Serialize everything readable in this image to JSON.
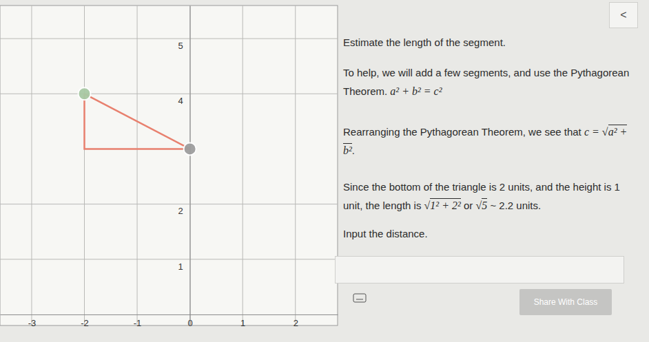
{
  "chart_data": {
    "type": "line",
    "xlim": [
      -3.6,
      2.8
    ],
    "ylim": [
      -0.2,
      5.6
    ],
    "xticks": [
      -3,
      -2,
      -1,
      0,
      1,
      2
    ],
    "yticks": [
      1,
      2,
      4,
      5
    ],
    "grid": true,
    "series": [
      {
        "type": "line",
        "color": "#e8806e",
        "marker": "none",
        "x": [
          -2,
          -2,
          0
        ],
        "values": [
          4,
          3,
          3
        ]
      },
      {
        "type": "line",
        "color": "#e8806e",
        "marker": "circle",
        "colors": [
          "#a9c9a4",
          "#9e9e9e"
        ],
        "x": [
          -2,
          0
        ],
        "values": [
          4,
          3
        ]
      }
    ]
  },
  "panel": {
    "back": "<",
    "paragraphs": [
      [
        "Estimate the length of the segment."
      ],
      [
        "To help, we will add a few segments, and use the Pythagorean Theorem. ",
        {
          "math": "a² + b² = c²"
        }
      ],
      [
        "Rearranging the Pythagorean Theorem, we see that ",
        {
          "math": "c = "
        },
        {
          "sqrt": {
            "sign": "√",
            "under": "a² + b²"
          }
        },
        "."
      ],
      [
        "Since the bottom of the triangle is 2 units, and the height is 1 unit, the length is ",
        {
          "sqrt": {
            "sign": "√",
            "under": "1² + 2²"
          }
        },
        " or ",
        {
          "sqrt": {
            "sign": "√",
            "under": "5"
          }
        },
        " ~ 2.2 units."
      ],
      [
        "Input the distance."
      ]
    ],
    "button": "Share With Class"
  }
}
